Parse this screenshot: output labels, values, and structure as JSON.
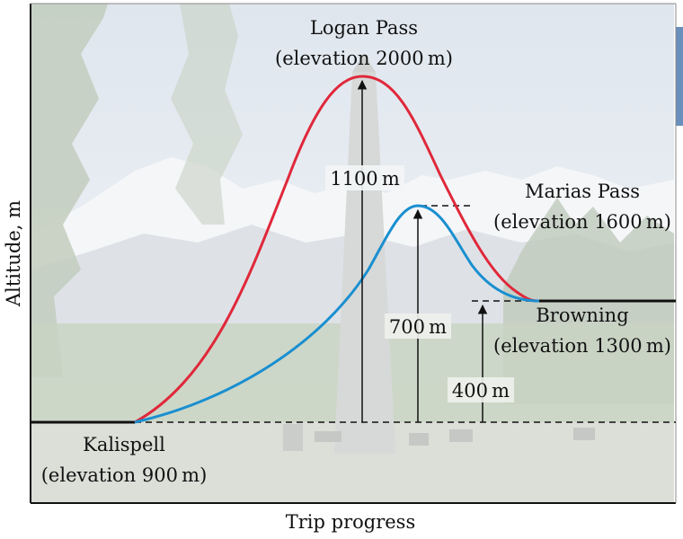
{
  "axes": {
    "xlabel": "Trip progress",
    "ylabel": "Altitude, m"
  },
  "places": {
    "logan": {
      "name": "Logan Pass",
      "elevation": "(elevation 2000 m)"
    },
    "marias": {
      "name": "Marias Pass",
      "elevation": "(elevation 1600 m)"
    },
    "browning": {
      "name": "Browning",
      "elevation": "(elevation 1300 m)"
    },
    "kalispell": {
      "name": "Kalispell",
      "elevation": "(elevation 900 m)"
    }
  },
  "differences": {
    "logan": "1100 m",
    "marias": "700 m",
    "browning": "400 m"
  },
  "colors": {
    "logan_route": "#e0283a",
    "marias_route": "#1a8fd0",
    "axis": "#111111"
  }
}
